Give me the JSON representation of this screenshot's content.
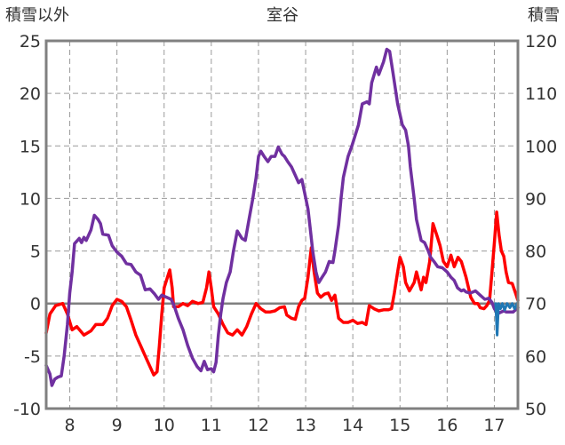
{
  "chart_data": {
    "type": "line",
    "title": "室谷",
    "ylabel_left": "積雪以外",
    "ylabel_right": "積雪",
    "x_ticks": [
      "8",
      "9",
      "10",
      "11",
      "12",
      "13",
      "14",
      "15",
      "16",
      "17"
    ],
    "y_left_ticks": [
      25,
      20,
      15,
      10,
      5,
      0,
      -5,
      -10
    ],
    "y_right_ticks": [
      120,
      110,
      100,
      90,
      80,
      70,
      60,
      50
    ],
    "ylim_left": [
      -10,
      25
    ],
    "ylim_right": [
      50,
      120
    ],
    "xlim": [
      7.5,
      17.5
    ],
    "grid": true,
    "grid_style": "dashed",
    "colors": {
      "red": "#ff0000",
      "purple": "#7030a0",
      "teal": "#1f77b4",
      "zero_line": "#808080",
      "frame": "#808080"
    },
    "series": [
      {
        "axis": "left",
        "color": "#ff0000",
        "points": [
          [
            7.5,
            -2.8
          ],
          [
            7.58,
            -1
          ],
          [
            7.7,
            -0.2
          ],
          [
            7.85,
            0
          ],
          [
            7.95,
            -1
          ],
          [
            8.05,
            -2.5
          ],
          [
            8.15,
            -2.2
          ],
          [
            8.3,
            -3
          ],
          [
            8.45,
            -2.6
          ],
          [
            8.55,
            -2
          ],
          [
            8.7,
            -2
          ],
          [
            8.8,
            -1.4
          ],
          [
            8.9,
            -0.2
          ],
          [
            9.0,
            0.4
          ],
          [
            9.1,
            0.2
          ],
          [
            9.2,
            -0.3
          ],
          [
            9.3,
            -1.6
          ],
          [
            9.4,
            -3
          ],
          [
            9.5,
            -4
          ],
          [
            9.6,
            -5
          ],
          [
            9.7,
            -6
          ],
          [
            9.78,
            -6.8
          ],
          [
            9.85,
            -6.5
          ],
          [
            9.9,
            -4
          ],
          [
            9.95,
            -1
          ],
          [
            10.0,
            1.5
          ],
          [
            10.07,
            2.5
          ],
          [
            10.12,
            3.2
          ],
          [
            10.17,
            1.5
          ],
          [
            10.2,
            -0.3
          ],
          [
            10.3,
            -0.3
          ],
          [
            10.4,
            0
          ],
          [
            10.5,
            -0.2
          ],
          [
            10.6,
            0.2
          ],
          [
            10.72,
            0
          ],
          [
            10.82,
            0.1
          ],
          [
            10.9,
            1.5
          ],
          [
            10.95,
            3
          ],
          [
            11.0,
            1.5
          ],
          [
            11.05,
            -0.3
          ],
          [
            11.15,
            -1
          ],
          [
            11.25,
            -2
          ],
          [
            11.35,
            -2.8
          ],
          [
            11.45,
            -3
          ],
          [
            11.55,
            -2.5
          ],
          [
            11.65,
            -3
          ],
          [
            11.75,
            -2.2
          ],
          [
            11.85,
            -1
          ],
          [
            11.95,
            0
          ],
          [
            12.05,
            -0.5
          ],
          [
            12.15,
            -0.8
          ],
          [
            12.25,
            -0.8
          ],
          [
            12.35,
            -0.7
          ],
          [
            12.45,
            -0.4
          ],
          [
            12.55,
            -0.3
          ],
          [
            12.6,
            -1.1
          ],
          [
            12.7,
            -1.4
          ],
          [
            12.78,
            -1.5
          ],
          [
            12.85,
            -0.3
          ],
          [
            12.92,
            0.3
          ],
          [
            12.98,
            0.5
          ],
          [
            13.05,
            2.5
          ],
          [
            13.12,
            5.3
          ],
          [
            13.18,
            3
          ],
          [
            13.25,
            1
          ],
          [
            13.32,
            0.6
          ],
          [
            13.4,
            0.9
          ],
          [
            13.48,
            1
          ],
          [
            13.55,
            0.3
          ],
          [
            13.62,
            0.8
          ],
          [
            13.7,
            -1.4
          ],
          [
            13.8,
            -1.8
          ],
          [
            13.9,
            -1.8
          ],
          [
            14.0,
            -1.6
          ],
          [
            14.1,
            -1.9
          ],
          [
            14.2,
            -1.8
          ],
          [
            14.28,
            -2
          ],
          [
            14.35,
            -0.2
          ],
          [
            14.45,
            -0.5
          ],
          [
            14.55,
            -0.7
          ],
          [
            14.65,
            -0.6
          ],
          [
            14.75,
            -0.6
          ],
          [
            14.82,
            -0.5
          ],
          [
            14.88,
            1
          ],
          [
            14.95,
            3
          ],
          [
            15.0,
            4.4
          ],
          [
            15.07,
            3.5
          ],
          [
            15.12,
            2
          ],
          [
            15.2,
            1.2
          ],
          [
            15.3,
            2
          ],
          [
            15.35,
            3
          ],
          [
            15.45,
            1.3
          ],
          [
            15.5,
            2.5
          ],
          [
            15.55,
            2
          ],
          [
            15.63,
            4
          ],
          [
            15.7,
            7.6
          ],
          [
            15.78,
            6.5
          ],
          [
            15.85,
            5.5
          ],
          [
            15.92,
            4
          ],
          [
            16.0,
            3.5
          ],
          [
            16.08,
            4.6
          ],
          [
            16.15,
            3.5
          ],
          [
            16.23,
            4.4
          ],
          [
            16.3,
            4
          ],
          [
            16.4,
            2.5
          ],
          [
            16.5,
            0.6
          ],
          [
            16.58,
            0
          ],
          [
            16.65,
            0
          ],
          [
            16.7,
            -0.4
          ],
          [
            16.78,
            -0.5
          ],
          [
            16.84,
            -0.2
          ],
          [
            16.9,
            0.3
          ],
          [
            16.95,
            3
          ],
          [
            17.0,
            5.8
          ],
          [
            17.05,
            8.7
          ],
          [
            17.1,
            6.5
          ],
          [
            17.15,
            5
          ],
          [
            17.2,
            4.5
          ],
          [
            17.25,
            3
          ],
          [
            17.3,
            2
          ],
          [
            17.38,
            1.9
          ],
          [
            17.45,
            1
          ],
          [
            17.5,
            0.3
          ]
        ]
      },
      {
        "axis": "left",
        "color": "#7030a0",
        "points": [
          [
            7.5,
            -5.9
          ],
          [
            7.58,
            -6.7
          ],
          [
            7.62,
            -7.8
          ],
          [
            7.68,
            -7.2
          ],
          [
            7.75,
            -7
          ],
          [
            7.82,
            -6.9
          ],
          [
            7.88,
            -5
          ],
          [
            7.95,
            -2
          ],
          [
            8.0,
            1
          ],
          [
            8.05,
            3
          ],
          [
            8.1,
            5.7
          ],
          [
            8.2,
            6.2
          ],
          [
            8.25,
            5.8
          ],
          [
            8.3,
            6.3
          ],
          [
            8.35,
            6
          ],
          [
            8.45,
            7
          ],
          [
            8.52,
            8.4
          ],
          [
            8.6,
            8
          ],
          [
            8.65,
            7.6
          ],
          [
            8.7,
            6.6
          ],
          [
            8.82,
            6.5
          ],
          [
            8.9,
            5.5
          ],
          [
            9.0,
            4.9
          ],
          [
            9.1,
            4.5
          ],
          [
            9.2,
            3.8
          ],
          [
            9.3,
            3.7
          ],
          [
            9.4,
            3
          ],
          [
            9.5,
            2.7
          ],
          [
            9.6,
            1.3
          ],
          [
            9.7,
            1.4
          ],
          [
            9.8,
            0.9
          ],
          [
            9.88,
            0.4
          ],
          [
            9.95,
            0.8
          ],
          [
            10.05,
            0.6
          ],
          [
            10.15,
            0.4
          ],
          [
            10.22,
            -0.3
          ],
          [
            10.3,
            -1.4
          ],
          [
            10.4,
            -2.5
          ],
          [
            10.5,
            -4
          ],
          [
            10.6,
            -5.2
          ],
          [
            10.7,
            -6
          ],
          [
            10.78,
            -6.4
          ],
          [
            10.85,
            -5.5
          ],
          [
            10.92,
            -6.3
          ],
          [
            11.0,
            -6.2
          ],
          [
            11.05,
            -6.5
          ],
          [
            11.1,
            -5.6
          ],
          [
            11.15,
            -3
          ],
          [
            11.2,
            -1
          ],
          [
            11.25,
            0.5
          ],
          [
            11.32,
            2
          ],
          [
            11.4,
            3
          ],
          [
            11.47,
            5
          ],
          [
            11.55,
            6.9
          ],
          [
            11.65,
            6.2
          ],
          [
            11.72,
            6
          ],
          [
            11.8,
            8
          ],
          [
            11.88,
            10
          ],
          [
            11.95,
            12
          ],
          [
            12.0,
            14
          ],
          [
            12.05,
            14.5
          ],
          [
            12.12,
            14
          ],
          [
            12.2,
            13.5
          ],
          [
            12.27,
            14
          ],
          [
            12.35,
            14
          ],
          [
            12.42,
            14.9
          ],
          [
            12.5,
            14.2
          ],
          [
            12.55,
            14
          ],
          [
            12.62,
            13.5
          ],
          [
            12.7,
            13
          ],
          [
            12.78,
            12.2
          ],
          [
            12.85,
            11.5
          ],
          [
            12.92,
            11.8
          ],
          [
            12.98,
            10.5
          ],
          [
            13.05,
            9
          ],
          [
            13.1,
            7
          ],
          [
            13.15,
            5
          ],
          [
            13.22,
            3
          ],
          [
            13.28,
            2
          ],
          [
            13.35,
            2.5
          ],
          [
            13.42,
            3
          ],
          [
            13.5,
            4
          ],
          [
            13.58,
            3.9
          ],
          [
            13.62,
            5
          ],
          [
            13.7,
            7.5
          ],
          [
            13.75,
            10
          ],
          [
            13.8,
            12
          ],
          [
            13.9,
            14
          ],
          [
            13.98,
            15
          ],
          [
            14.05,
            16
          ],
          [
            14.12,
            17
          ],
          [
            14.2,
            19
          ],
          [
            14.3,
            19.2
          ],
          [
            14.35,
            19
          ],
          [
            14.4,
            21
          ],
          [
            14.5,
            22.5
          ],
          [
            14.55,
            21.8
          ],
          [
            14.65,
            23
          ],
          [
            14.72,
            24.2
          ],
          [
            14.78,
            24
          ],
          [
            14.85,
            22
          ],
          [
            14.95,
            19
          ],
          [
            15.05,
            17
          ],
          [
            15.12,
            16.5
          ],
          [
            15.18,
            15
          ],
          [
            15.22,
            13
          ],
          [
            15.3,
            10
          ],
          [
            15.35,
            8
          ],
          [
            15.45,
            6
          ],
          [
            15.52,
            5.8
          ],
          [
            15.6,
            5
          ],
          [
            15.65,
            4.4
          ],
          [
            15.72,
            4
          ],
          [
            15.8,
            3.5
          ],
          [
            15.9,
            3.4
          ],
          [
            16.0,
            3
          ],
          [
            16.08,
            2.5
          ],
          [
            16.15,
            2.2
          ],
          [
            16.22,
            1.5
          ],
          [
            16.3,
            1.2
          ],
          [
            16.35,
            1.3
          ],
          [
            16.4,
            1.1
          ],
          [
            16.48,
            1
          ],
          [
            16.55,
            1.1
          ],
          [
            16.6,
            1.2
          ],
          [
            16.7,
            0.8
          ],
          [
            16.8,
            0.4
          ],
          [
            16.88,
            0.5
          ],
          [
            16.95,
            0.1
          ],
          [
            17.0,
            -0.5
          ],
          [
            17.05,
            -0.8
          ],
          [
            17.1,
            -0.9
          ],
          [
            17.2,
            -0.7
          ],
          [
            17.25,
            -0.8
          ],
          [
            17.32,
            -0.8
          ],
          [
            17.4,
            -0.8
          ],
          [
            17.5,
            -0.4
          ]
        ]
      },
      {
        "axis": "left",
        "color": "#1f77b4",
        "points": [
          [
            17.03,
            0
          ],
          [
            17.06,
            -3
          ],
          [
            17.09,
            0
          ],
          [
            17.13,
            -0.5
          ],
          [
            17.17,
            0
          ],
          [
            17.22,
            -0.6
          ],
          [
            17.27,
            0
          ],
          [
            17.33,
            -0.4
          ],
          [
            17.38,
            0
          ],
          [
            17.43,
            -0.5
          ],
          [
            17.48,
            0
          ]
        ]
      }
    ]
  }
}
